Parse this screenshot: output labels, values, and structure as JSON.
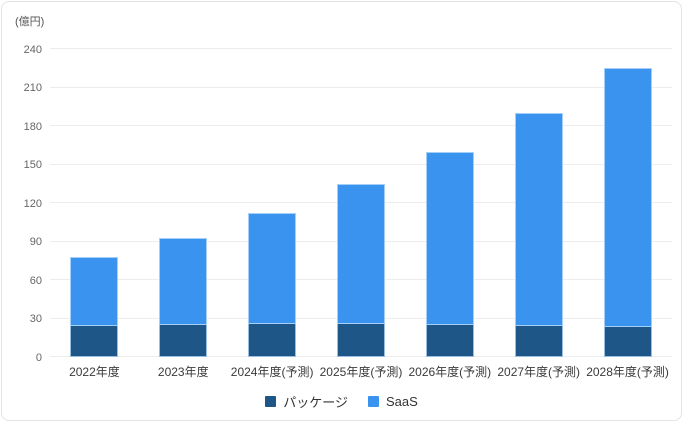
{
  "chart_data": {
    "type": "bar",
    "stacked": true,
    "unit": "(億円)",
    "categories": [
      "2022年度",
      "2023年度",
      "2024年度(予測)",
      "2025年度(予測)",
      "2026年度(予測)",
      "2027年度(予測)",
      "2028年度(予測)"
    ],
    "series": [
      {
        "name": "パッケージ",
        "color": "#1F5688",
        "values": [
          24,
          25,
          26,
          26,
          25,
          24,
          23
        ]
      },
      {
        "name": "SaaS",
        "color": "#3B93F0",
        "values": [
          54,
          68,
          86,
          109,
          135,
          166,
          202
        ]
      }
    ],
    "totals": [
      78,
      93,
      112,
      135,
      160,
      190,
      225
    ],
    "ylim": [
      0,
      240
    ],
    "ytick_step": 30,
    "yticks": [
      0,
      30,
      60,
      90,
      120,
      150,
      180,
      210,
      240
    ],
    "grid": true,
    "grid_color": "#ededed",
    "legend_position": "bottom"
  }
}
